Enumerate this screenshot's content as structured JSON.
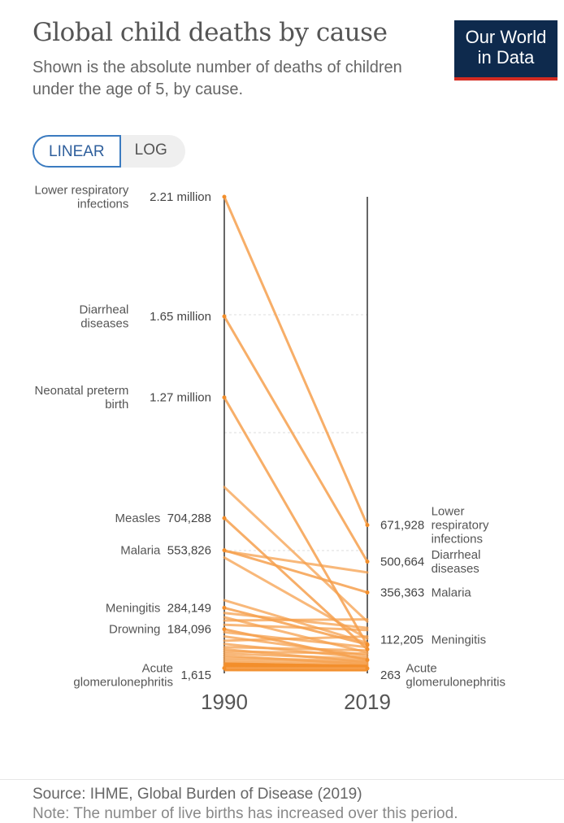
{
  "header": {
    "title": "Global child deaths by cause",
    "subtitle": "Shown is the absolute number of deaths of children under the age of 5, by cause."
  },
  "logo": {
    "line1": "Our World",
    "line2": "in Data"
  },
  "scale_toggle": {
    "linear_label": "LINEAR",
    "log_label": "LOG",
    "selected": "LINEAR"
  },
  "footer": {
    "source": "Source: IHME, Global Burden of Disease (2019)",
    "note": "Note: The number of live births has increased over this period."
  },
  "colors": {
    "line": "#f6a04d",
    "line_strong": "#f28e2b",
    "axis": "#333333",
    "grid": "#dddddd",
    "logo_bg": "#0e2a4d",
    "logo_bar": "#d42b21",
    "toggle_active": "#3b7bc0"
  },
  "chart_data": {
    "type": "slope",
    "x": [
      "1990",
      "2019"
    ],
    "ylim": [
      0,
      2210000
    ],
    "y_scale": "linear",
    "labeled_series": [
      {
        "name": "Lower respiratory infections",
        "values": [
          2210000,
          671928
        ],
        "start_label": "2.21 million",
        "end_label": "671,928"
      },
      {
        "name": "Diarrheal diseases",
        "values": [
          1650000,
          500664
        ],
        "start_label": "1.65 million",
        "end_label": "500,664"
      },
      {
        "name": "Neonatal preterm birth",
        "values": [
          1270000,
          110000
        ],
        "start_label": "1.27 million"
      },
      {
        "name": "Measles",
        "values": [
          704288,
          90000
        ],
        "start_label": "704,288"
      },
      {
        "name": "Malaria",
        "values": [
          553826,
          356363
        ],
        "start_label": "553,826",
        "end_label": "356,363"
      },
      {
        "name": "Meningitis",
        "values": [
          284149,
          112205
        ],
        "start_label": "284,149",
        "end_label": "112,205"
      },
      {
        "name": "Drowning",
        "values": [
          184096,
          40000
        ],
        "start_label": "184,096"
      },
      {
        "name": "Acute glomerulonephritis",
        "values": [
          1615,
          263
        ],
        "start_label": "1,615",
        "end_label": "263"
      }
    ],
    "other_series": [
      {
        "values": [
          850000,
          220000
        ]
      },
      {
        "values": [
          550000,
          450000
        ]
      },
      {
        "values": [
          520000,
          140000
        ]
      },
      {
        "values": [
          320000,
          120000
        ]
      },
      {
        "values": [
          260000,
          190000
        ]
      },
      {
        "values": [
          240000,
          75000
        ]
      },
      {
        "values": [
          225000,
          230000
        ]
      },
      {
        "values": [
          205000,
          180000
        ]
      },
      {
        "values": [
          170000,
          100000
        ]
      },
      {
        "values": [
          150000,
          60000
        ]
      },
      {
        "values": [
          130000,
          150000
        ]
      },
      {
        "values": [
          115000,
          50000
        ]
      },
      {
        "values": [
          100000,
          85000
        ]
      },
      {
        "values": [
          90000,
          30000
        ]
      },
      {
        "values": [
          80000,
          70000
        ]
      },
      {
        "values": [
          70000,
          45000
        ]
      },
      {
        "values": [
          60000,
          20000
        ]
      },
      {
        "values": [
          50000,
          35000
        ]
      },
      {
        "values": [
          40000,
          25000
        ]
      },
      {
        "values": [
          30000,
          15000
        ]
      },
      {
        "values": [
          22000,
          12000
        ]
      },
      {
        "values": [
          15000,
          8000
        ]
      },
      {
        "values": [
          10000,
          5000
        ]
      },
      {
        "values": [
          6000,
          3000
        ]
      }
    ]
  }
}
